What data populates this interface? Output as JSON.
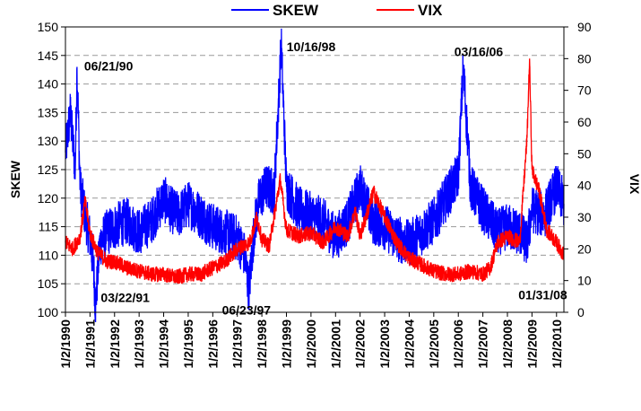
{
  "chart_data": {
    "type": "line",
    "title": "",
    "xlabel": "",
    "ylabel": "SKEW",
    "y2label": "VIX",
    "ylim": [
      100,
      150
    ],
    "y2lim": [
      0,
      90
    ],
    "yticks": [
      "100",
      "105",
      "110",
      "115",
      "120",
      "125",
      "130",
      "135",
      "140",
      "145",
      "150"
    ],
    "y2ticks": [
      "0",
      "10",
      "20",
      "30",
      "40",
      "50",
      "60",
      "70",
      "80",
      "90"
    ],
    "xlim": [
      1990.0,
      2010.3
    ],
    "x_tick_labels": [
      "1/2/1990",
      "1/2/1991",
      "1/2/1992",
      "1/2/1993",
      "1/2/1994",
      "1/2/1995",
      "1/2/1996",
      "1/2/1997",
      "1/2/1998",
      "1/2/1999",
      "1/2/2000",
      "1/2/2001",
      "1/2/2002",
      "1/2/2003",
      "1/2/2004",
      "1/2/2005",
      "1/2/2006",
      "1/2/2007",
      "1/2/2008",
      "1/2/2009",
      "1/2/2010"
    ],
    "grid": "horizontal dashed",
    "legend_position": "top",
    "series": [
      {
        "name": "SKEW",
        "axis": "left",
        "color": "#0000ff",
        "x": [
          1990.0,
          1990.2,
          1990.4,
          1990.47,
          1990.6,
          1990.8,
          1991.0,
          1991.15,
          1991.22,
          1991.4,
          1991.7,
          1992.0,
          1992.5,
          1993.0,
          1993.5,
          1994.0,
          1994.3,
          1994.6,
          1995.0,
          1995.5,
          1996.0,
          1996.5,
          1997.0,
          1997.3,
          1997.47,
          1997.7,
          1997.9,
          1998.2,
          1998.5,
          1998.79,
          1999.0,
          1999.5,
          2000.0,
          2000.5,
          2001.0,
          2001.5,
          2002.0,
          2002.5,
          2003.0,
          2003.5,
          2004.0,
          2004.5,
          2005.0,
          2005.5,
          2006.0,
          2006.2,
          2006.5,
          2007.0,
          2007.3,
          2007.6,
          2008.0,
          2008.5,
          2008.8,
          2009.0,
          2009.5,
          2010.0,
          2010.3
        ],
        "y": [
          128,
          135,
          125,
          143,
          122,
          117,
          113,
          108,
          101,
          112,
          114,
          115,
          116,
          114,
          116,
          120,
          118,
          117,
          119,
          117,
          115,
          114,
          113,
          110,
          104,
          115,
          120,
          122,
          121,
          147,
          122,
          118,
          117,
          116,
          113,
          116,
          122,
          116,
          115,
          113,
          112,
          114,
          116,
          120,
          124,
          143,
          122,
          118,
          116,
          114,
          115,
          114,
          112,
          118,
          117,
          122,
          119
        ]
      },
      {
        "name": "VIX",
        "axis": "right",
        "color": "#ff0000",
        "x": [
          1990.0,
          1990.3,
          1990.6,
          1990.8,
          1991.0,
          1991.3,
          1991.7,
          1992.0,
          1992.5,
          1993.0,
          1993.5,
          1994.0,
          1994.5,
          1995.0,
          1995.5,
          1996.0,
          1996.5,
          1997.0,
          1997.5,
          1997.8,
          1998.0,
          1998.3,
          1998.75,
          1999.0,
          1999.5,
          2000.0,
          2000.5,
          2001.0,
          2001.5,
          2001.8,
          2002.0,
          2002.55,
          2003.0,
          2003.5,
          2004.0,
          2004.5,
          2005.0,
          2005.5,
          2006.0,
          2006.5,
          2007.0,
          2007.3,
          2007.6,
          2008.0,
          2008.5,
          2008.8,
          2008.9,
          2009.0,
          2009.3,
          2009.6,
          2010.0,
          2010.3
        ],
        "y": [
          22,
          20,
          24,
          35,
          25,
          19,
          16,
          16,
          14,
          13,
          12,
          12,
          11,
          12,
          12,
          14,
          16,
          20,
          22,
          30,
          23,
          21,
          42,
          26,
          24,
          25,
          22,
          27,
          24,
          32,
          24,
          38,
          30,
          22,
          17,
          15,
          13,
          12,
          12,
          13,
          12,
          14,
          22,
          24,
          22,
          55,
          80,
          45,
          38,
          26,
          22,
          18
        ]
      }
    ],
    "annotations": [
      {
        "text": "06/21/90",
        "x": 1990.47,
        "y": 143,
        "axis": "left"
      },
      {
        "text": "03/22/91",
        "x": 1991.22,
        "y": 101,
        "axis": "left"
      },
      {
        "text": "06/23/97",
        "x": 1997.47,
        "y": 104,
        "axis": "left"
      },
      {
        "text": "10/16/98",
        "x": 1998.79,
        "y": 147,
        "axis": "left"
      },
      {
        "text": "03/16/06",
        "x": 2006.2,
        "y": 143,
        "axis": "left"
      },
      {
        "text": "01/31/08",
        "x": 2008.08,
        "y": 104.5,
        "axis": "left"
      }
    ]
  }
}
